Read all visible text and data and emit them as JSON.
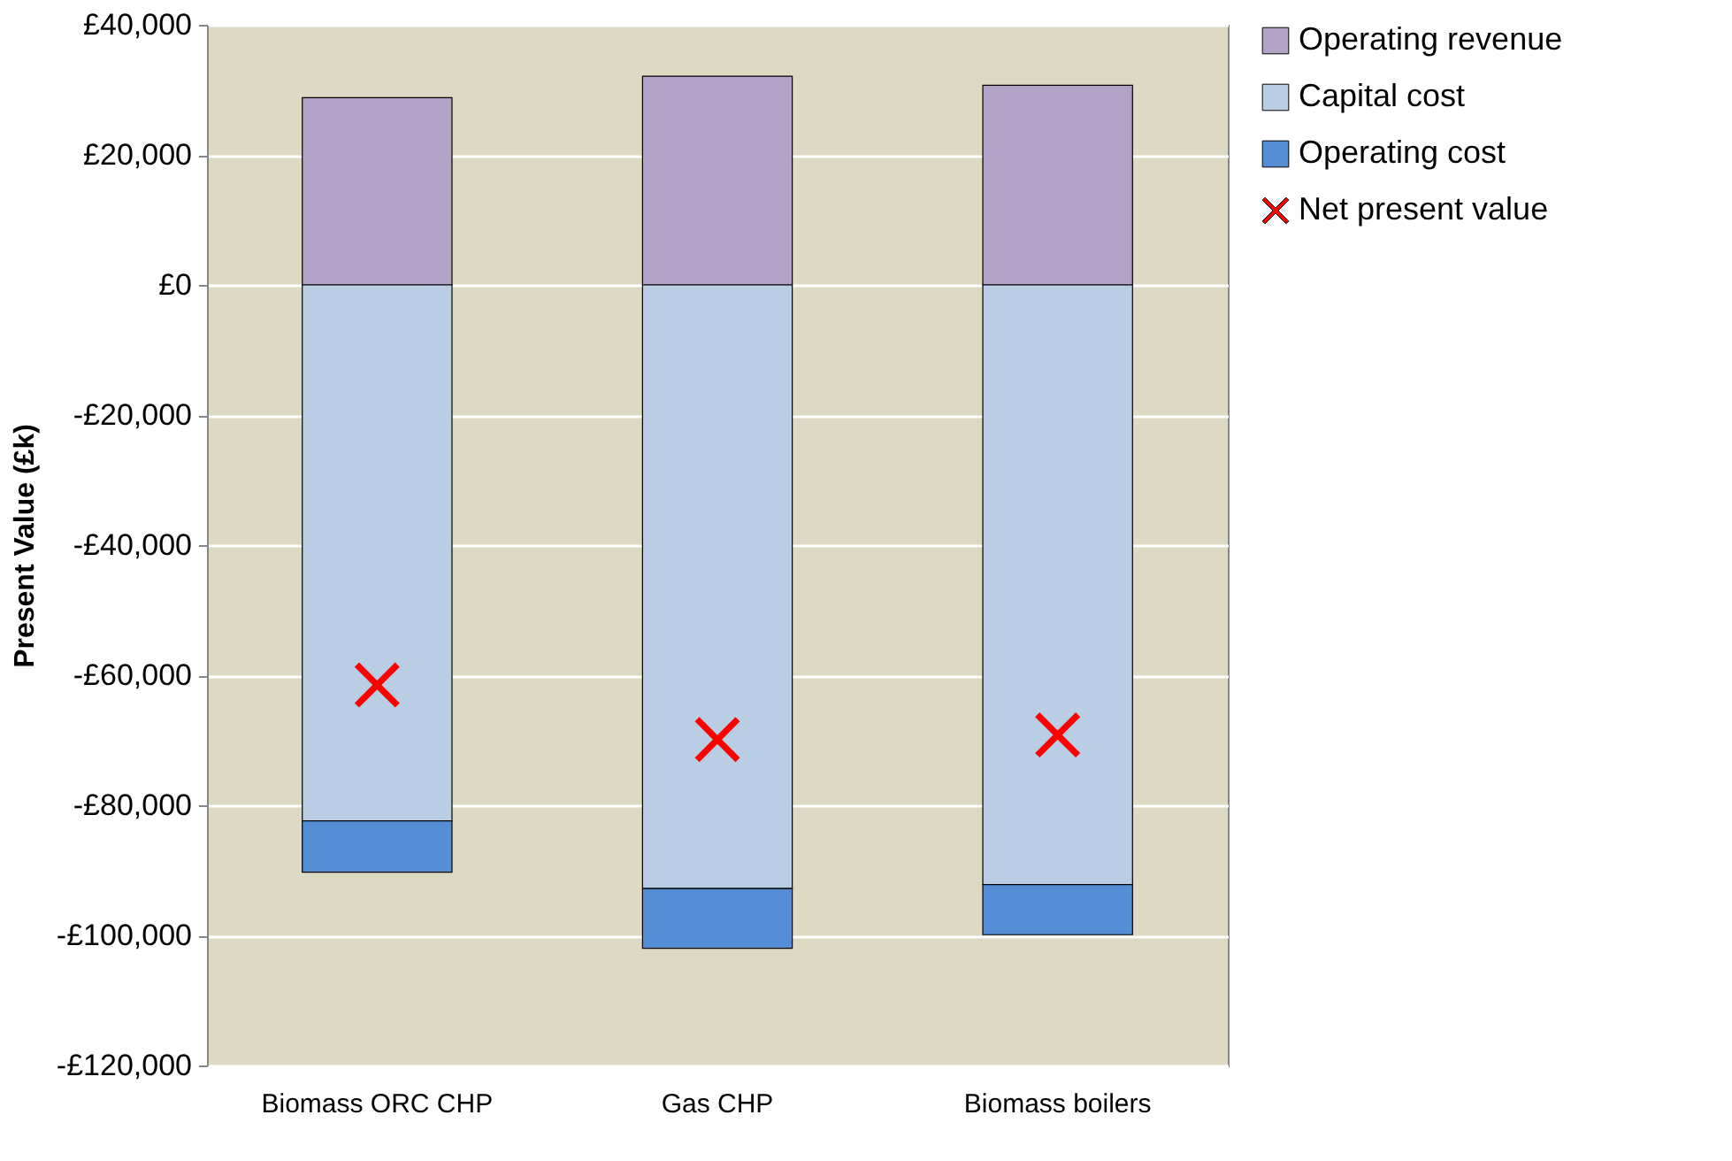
{
  "chart_data": {
    "type": "bar",
    "stacked": true,
    "ylabel": "Present Value (£k)",
    "categories": [
      "Biomass ORC CHP",
      "Gas CHP",
      "Biomass boilers"
    ],
    "series": [
      {
        "name": "Operating revenue",
        "color": "#b3a2c7",
        "values": [
          28800,
          32100,
          30700
        ]
      },
      {
        "name": "Capital cost",
        "color": "#b9cde5",
        "values": [
          -82400,
          -92800,
          -92200
        ]
      },
      {
        "name": "Operating cost",
        "color": "#558ed5",
        "values": [
          -7900,
          -9200,
          -7700
        ]
      },
      {
        "name": "Net present value",
        "type": "scatter",
        "marker": "cross",
        "color": "#ff0000",
        "x": [
          "Biomass ORC CHP",
          "Gas CHP",
          "Biomass boilers"
        ],
        "values": [
          -61500,
          -69900,
          -69200
        ]
      }
    ],
    "ylim": [
      -120000,
      40000
    ],
    "yticks": [
      {
        "value": 40000,
        "label": "£40,000"
      },
      {
        "value": 20000,
        "label": "£20,000"
      },
      {
        "value": 0,
        "label": "£0"
      },
      {
        "value": -20000,
        "label": "-£20,000"
      },
      {
        "value": -40000,
        "label": "-£40,000"
      },
      {
        "value": -60000,
        "label": "-£60,000"
      },
      {
        "value": -80000,
        "label": "-£80,000"
      },
      {
        "value": -100000,
        "label": "-£100,000"
      },
      {
        "value": -120000,
        "label": "-£120,000"
      }
    ],
    "grid": "y",
    "legend": "right"
  }
}
